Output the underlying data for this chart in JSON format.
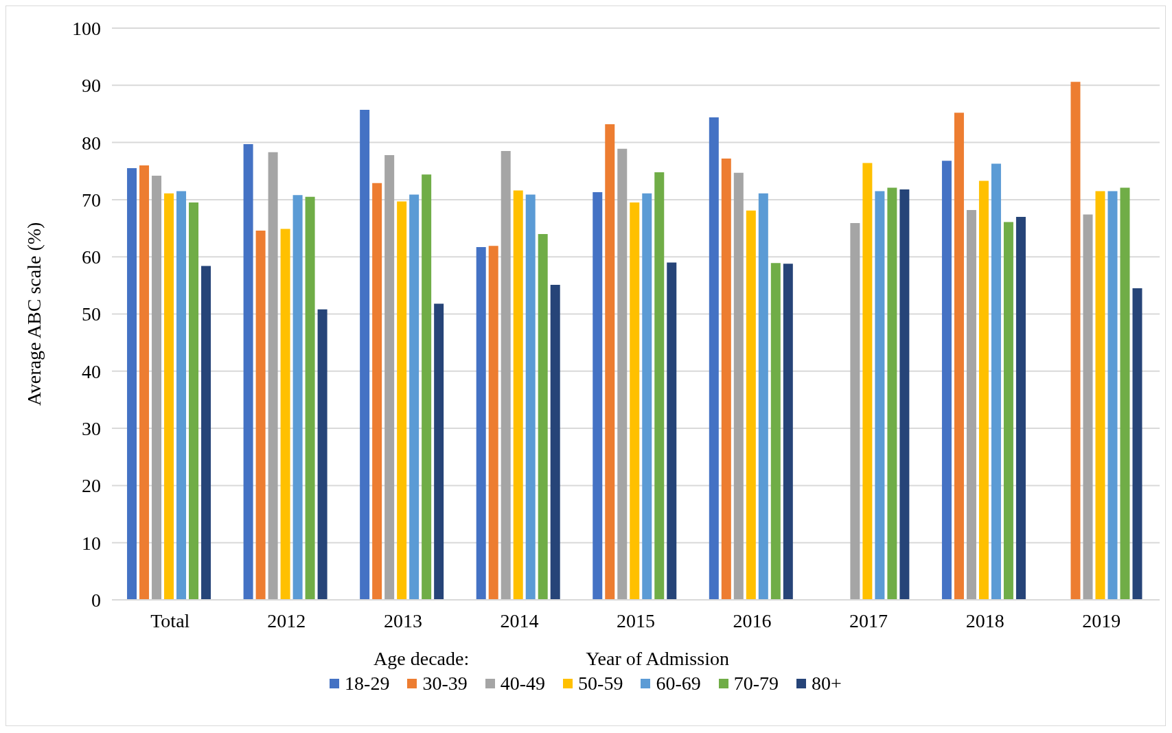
{
  "chart_data": {
    "type": "bar",
    "ylabel": "Average ABC scale (%)",
    "xlabel": "Year of Admission",
    "legend_title": "Age decade:",
    "categories": [
      "Total",
      "2012",
      "2013",
      "2014",
      "2015",
      "2016",
      "2017",
      "2018",
      "2019"
    ],
    "series": [
      {
        "name": "18-29",
        "color": "#4472c4",
        "values": [
          75.5,
          79.7,
          85.7,
          61.7,
          71.3,
          84.4,
          null,
          76.8,
          null
        ]
      },
      {
        "name": "30-39",
        "color": "#ed7d31",
        "values": [
          76.0,
          64.6,
          72.9,
          61.9,
          83.2,
          77.2,
          null,
          85.2,
          90.6
        ]
      },
      {
        "name": "40-49",
        "color": "#a5a5a5",
        "values": [
          74.2,
          78.3,
          77.8,
          78.5,
          78.9,
          74.7,
          65.9,
          68.2,
          67.4
        ]
      },
      {
        "name": "50-59",
        "color": "#ffc000",
        "values": [
          71.1,
          64.9,
          69.7,
          71.6,
          69.5,
          68.1,
          76.4,
          73.3,
          71.5
        ]
      },
      {
        "name": "60-69",
        "color": "#5b9bd5",
        "values": [
          71.5,
          70.8,
          70.9,
          70.9,
          71.1,
          71.1,
          71.5,
          76.3,
          71.5
        ]
      },
      {
        "name": "70-79",
        "color": "#70ad47",
        "values": [
          69.5,
          70.5,
          74.4,
          64.0,
          74.8,
          58.9,
          72.1,
          66.1,
          72.1
        ]
      },
      {
        "name": "80+",
        "color": "#264478",
        "values": [
          58.4,
          50.8,
          51.8,
          55.1,
          59.0,
          58.8,
          71.8,
          67.0,
          54.5
        ]
      }
    ],
    "ylim": [
      0,
      100
    ],
    "yticks": [
      0,
      10,
      20,
      30,
      40,
      50,
      60,
      70,
      80,
      90,
      100
    ],
    "grid": "y",
    "legend": "bottom"
  }
}
